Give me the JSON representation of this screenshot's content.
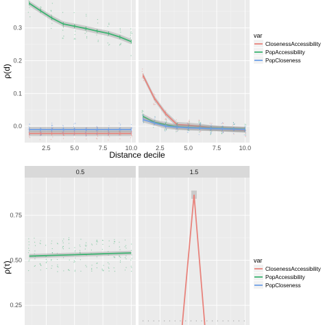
{
  "colors": {
    "ClosenessAccessibility": "#e8827b",
    "PopAccessibility": "#3cb371",
    "PopCloseness": "#6f9fe6",
    "ribbon": "#999999"
  },
  "chart_data": [
    {
      "type": "line",
      "panels": [
        "",
        ""
      ],
      "xlabel": "Distance decile",
      "ylabel": "ρ(d)",
      "xlim": [
        0.6,
        10.4
      ],
      "ylim": [
        -0.05,
        0.385
      ],
      "xticks": [
        2.5,
        5.0,
        7.5,
        10.0
      ],
      "xtick_labels": [
        "2.5",
        "5.0",
        "7.5",
        "10.0"
      ],
      "yticks": [
        0.0,
        0.1,
        0.2,
        0.3
      ],
      "ytick_labels": [
        "0.0",
        "0.1",
        "0.2",
        "0.3"
      ],
      "grid": true,
      "legend": {
        "title": "var",
        "position": "right",
        "entries": [
          "ClosenessAccessibility",
          "PopAccessibility",
          "PopCloseness"
        ]
      },
      "facets": [
        {
          "series": [
            {
              "name": "ClosenessAccessibility",
              "x": [
                1,
                2,
                3,
                4,
                5,
                6,
                7,
                8,
                9,
                10
              ],
              "values": [
                -0.022,
                -0.022,
                -0.022,
                -0.022,
                -0.022,
                -0.022,
                -0.022,
                -0.022,
                -0.022,
                -0.022
              ]
            },
            {
              "name": "PopAccessibility",
              "x": [
                1,
                2,
                3,
                4,
                5,
                6,
                7,
                8,
                9,
                10
              ],
              "values": [
                0.375,
                0.352,
                0.33,
                0.312,
                0.305,
                0.298,
                0.29,
                0.283,
                0.272,
                0.258
              ]
            },
            {
              "name": "PopCloseness",
              "x": [
                1,
                2,
                3,
                4,
                5,
                6,
                7,
                8,
                9,
                10
              ],
              "values": [
                -0.01,
                -0.01,
                -0.01,
                -0.01,
                -0.01,
                -0.01,
                -0.01,
                -0.01,
                -0.01,
                -0.01
              ]
            }
          ]
        },
        {
          "series": [
            {
              "name": "ClosenessAccessibility",
              "x": [
                1,
                2,
                3,
                4,
                5,
                6,
                7,
                8,
                9,
                10
              ],
              "values": [
                0.155,
                0.085,
                0.038,
                0.005,
                0.003,
                0.0,
                -0.005,
                -0.008,
                -0.01,
                -0.012
              ]
            },
            {
              "name": "PopAccessibility",
              "x": [
                1,
                2,
                3,
                4,
                5,
                6,
                7,
                8,
                9,
                10
              ],
              "values": [
                0.03,
                0.012,
                0.005,
                -0.002,
                -0.004,
                -0.005,
                -0.006,
                -0.007,
                -0.008,
                -0.009
              ]
            },
            {
              "name": "PopCloseness",
              "x": [
                1,
                2,
                3,
                4,
                5,
                6,
                7,
                8,
                9,
                10
              ],
              "values": [
                0.02,
                0.01,
                0.0,
                -0.003,
                -0.005,
                -0.006,
                -0.007,
                -0.008,
                -0.009,
                -0.01
              ]
            }
          ]
        }
      ]
    },
    {
      "type": "line",
      "panels": [
        "0.5",
        "1.5"
      ],
      "xlabel": "",
      "ylabel": "ρ(τ)",
      "xlim": [
        0.6,
        10.4
      ],
      "ylim": [
        0.14,
        0.96
      ],
      "yticks": [
        0.25,
        0.5,
        0.75
      ],
      "ytick_labels": [
        "0.25",
        "0.50",
        "0.75"
      ],
      "grid": true,
      "legend": {
        "title": "var",
        "position": "right",
        "entries": [
          "ClosenessAccessibility",
          "PopAccessibility",
          "PopCloseness"
        ]
      },
      "facets": [
        {
          "series": [
            {
              "name": "PopAccessibility",
              "x": [
                1,
                2,
                3,
                4,
                5,
                6,
                7,
                8,
                9,
                10
              ],
              "values": [
                0.523,
                0.525,
                0.527,
                0.529,
                0.531,
                0.533,
                0.535,
                0.537,
                0.539,
                0.541
              ]
            }
          ]
        },
        {
          "series": [
            {
              "name": "ClosenessAccessibility",
              "x": [
                4.4,
                5.5,
                6.5
              ],
              "values": [
                0.1,
                0.865,
                0.1
              ]
            }
          ]
        }
      ]
    }
  ]
}
